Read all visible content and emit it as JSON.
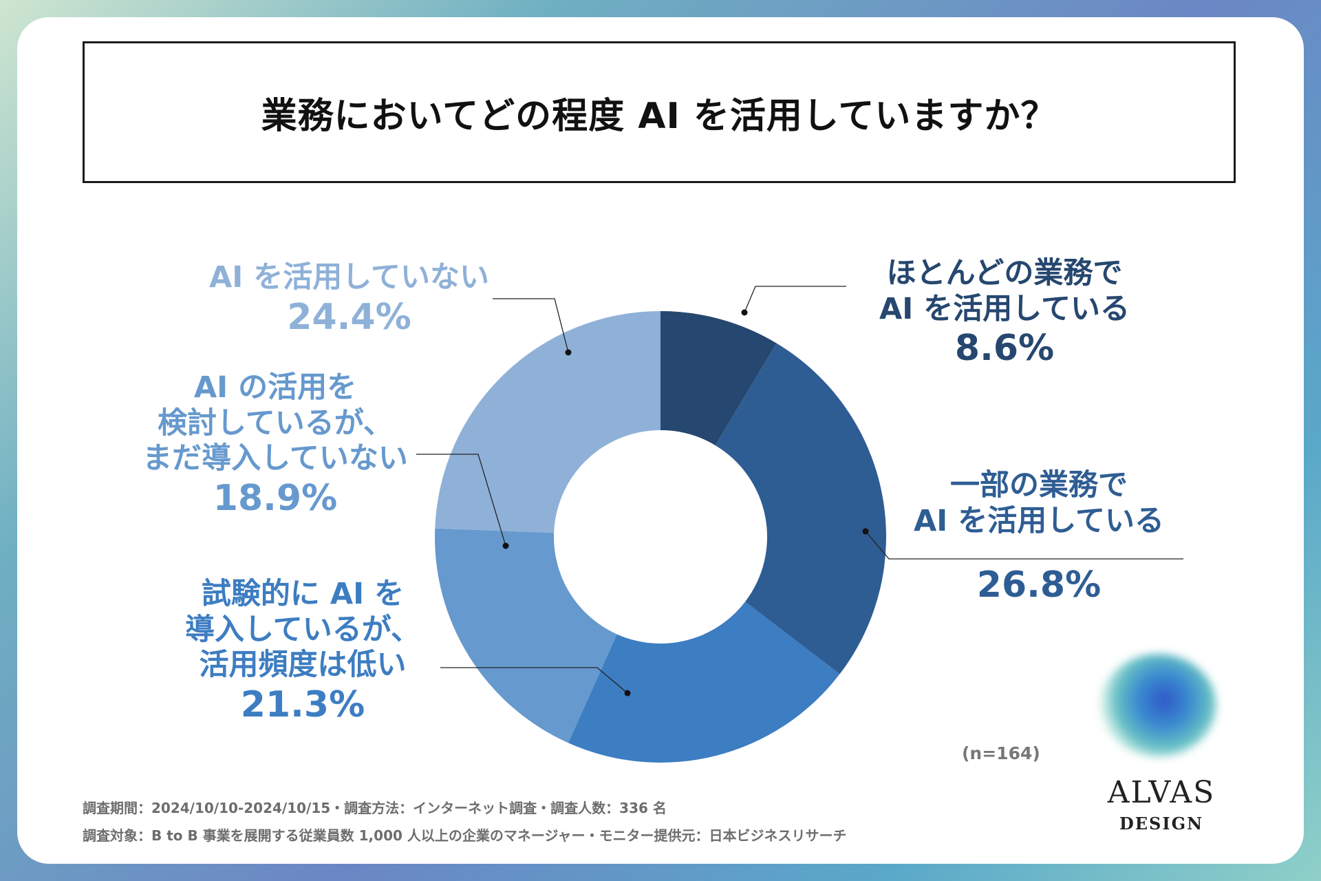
{
  "title": "業務においてどの程度 AI を活用していますか？",
  "sample_note": "(n=164)",
  "footer": {
    "line1": "調査期間：2024/10/10-2024/10/15・調査方法：インターネット調査・調査人数：336 名",
    "line2": "調査対象：B to B 事業を展開する従業員数 1,000 人以上の企業のマネージャー・モニター提供元：日本ビジネスリサーチ"
  },
  "logo": {
    "name": "ALVAS",
    "sub": "DESIGN"
  },
  "chart_data": {
    "type": "pie",
    "donut": true,
    "slices": [
      {
        "label_lines": [
          "ほとんどの業務で",
          "AI を活用している"
        ],
        "value": 8.6,
        "value_text": "8.6%",
        "color": "#26476f"
      },
      {
        "label_lines": [
          "一部の業務で",
          "AI を活用している"
        ],
        "value": 26.8,
        "value_text": "26.8%",
        "color": "#2e5d93"
      },
      {
        "label_lines": [
          "試験的に AI を",
          "導入しているが、",
          "活用頻度は低い"
        ],
        "value": 21.3,
        "value_text": "21.3%",
        "color": "#3d7dc2"
      },
      {
        "label_lines": [
          "AI の活用を",
          "検討しているが、",
          "まだ導入していない"
        ],
        "value": 18.9,
        "value_text": "18.9%",
        "color": "#6699ce"
      },
      {
        "label_lines": [
          "AI を活用していない"
        ],
        "value": 24.4,
        "value_text": "24.4%",
        "color": "#8fb1d8"
      }
    ]
  }
}
